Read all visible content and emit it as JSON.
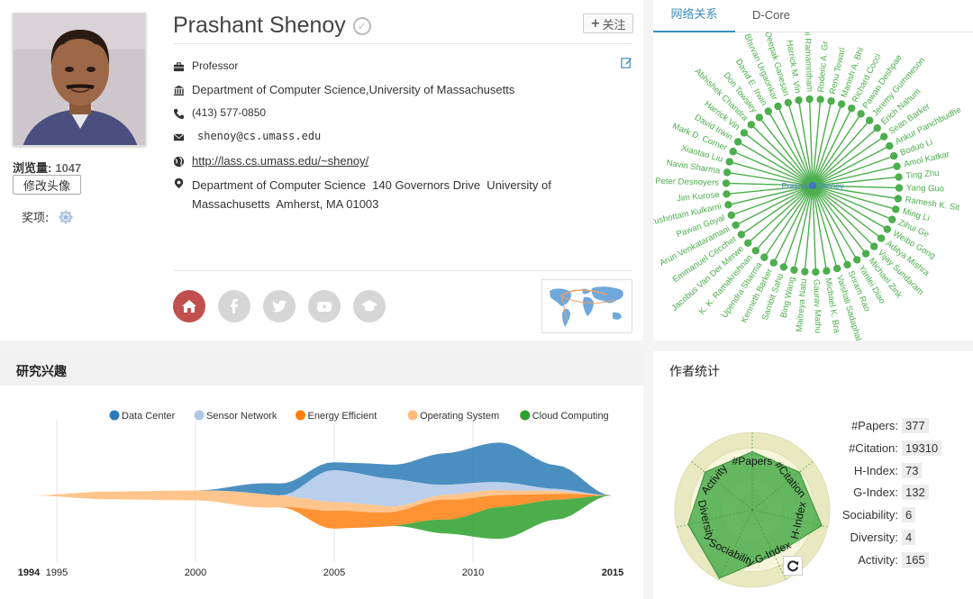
{
  "profile": {
    "name": "Prashant Shenoy",
    "views_label": "浏览量:",
    "views_count": "1047",
    "edit_avatar_label": "修改头像",
    "awards_label": "奖项:",
    "follow_label": "关注",
    "position": "Professor",
    "department": "Department of Computer Science,University of Massachusetts",
    "phone": "(413) 577-0850",
    "email": "shenoy@cs.umass.edu",
    "homepage": "http://lass.cs.umass.edu/~shenoy/",
    "address": "Department of Computer Science  140 Governors Drive  University of Massachusetts  Amherst, MA 01003",
    "colors": {
      "home": "#c0504d",
      "social": "#d6d6d6"
    },
    "social_icons": [
      "home-icon",
      "facebook-icon",
      "twitter-icon",
      "youtube-icon",
      "scholar-icon"
    ]
  },
  "network": {
    "tabs": [
      {
        "label": "网络关系",
        "active": true
      },
      {
        "label": "D-Core",
        "active": false
      }
    ],
    "center": "Prashant Shenoy",
    "color": "#4cae4c",
    "nodes": [
      "Roderic A. Gr",
      "Renu Tewari",
      "Manish A. Bhi",
      "Richard Cocci",
      "Pawan Deshpae",
      "Jeremy Gummeson",
      "Erich Nahum",
      "Sean Barker",
      "Ankur Panchbudhe",
      "Boduo Li",
      "Amol Katkar",
      "Ting Zhu",
      "Yang Guo",
      "Ramesh K. Sit",
      "Ming Li",
      "Zihui Ge",
      "Weibo Gong",
      "Aditya Mishra",
      "Vijay Sundaram",
      "Michael Zink",
      "Yanlei Diao",
      "Sriram Rao",
      "Vaishali Sadaphal",
      "Michael K. Bra",
      "Gaurav Mathu",
      "Maitreya Natu",
      "Bing Wang",
      "Sambit Sahu",
      "Kenneth Barker",
      "Upendra Sharma",
      "K. K. Ramakrishnan",
      "Jacobus Van Der Merwe",
      "Emmanuel Cecchet",
      "Arun Venkataramani",
      "Pawan Goyal",
      "rushottam Kulkarni",
      "Jim Kurose",
      "Peter Desnoyers",
      "Navin Sharma",
      "Xiaotao Liu",
      "Mark D. Corner",
      "David Irwin",
      "Harrick Vin",
      "Abhishek Chandra",
      "Don Towsley",
      "David E. Irwin",
      "Bhuvan Urgaonkar",
      "Deepak Ganesan",
      "Harrick M. Vin",
      "Krithi Ramamritham"
    ]
  },
  "interests": {
    "title": "研究兴趣",
    "chart_data": {
      "type": "area",
      "x_labels": [
        "1995",
        "2000",
        "2005",
        "2010"
      ],
      "x_start_label": "1994",
      "x_end_label": "2015",
      "legend_position": "top",
      "series": [
        {
          "name": "Data Center",
          "color": "#2c7bb6",
          "years": [
            1994,
            2000,
            2003,
            2005,
            2007,
            2009,
            2011,
            2013,
            2015
          ],
          "values": [
            0,
            0,
            0.6,
            0.4,
            0.7,
            1.6,
            2.0,
            1.2,
            0
          ]
        },
        {
          "name": "Sensor Network",
          "color": "#aec7e8",
          "years": [
            1994,
            2003,
            2005,
            2007,
            2009,
            2011,
            2013,
            2015
          ],
          "values": [
            0,
            0,
            1.6,
            1.4,
            0.5,
            0.4,
            0.1,
            0
          ]
        },
        {
          "name": "Energy Efficient",
          "color": "#ff7f0e",
          "years": [
            1994,
            2003,
            2005,
            2007,
            2009,
            2011,
            2013,
            2015
          ],
          "values": [
            0,
            0,
            0.9,
            0.7,
            1.0,
            0.6,
            0.3,
            0
          ]
        },
        {
          "name": "Operating System",
          "color": "#ffbb78",
          "years": [
            1994,
            1997,
            2000,
            2002,
            2004,
            2006,
            2008,
            2010,
            2012,
            2015
          ],
          "values": [
            0,
            0.4,
            0.5,
            0.7,
            0.5,
            0.4,
            0.2,
            0.3,
            0.2,
            0
          ]
        },
        {
          "name": "Cloud Computing",
          "color": "#2ca02c",
          "years": [
            1994,
            2007,
            2009,
            2011,
            2013,
            2015
          ],
          "values": [
            0,
            0,
            0.7,
            1.6,
            1.0,
            0
          ]
        }
      ]
    }
  },
  "stats": {
    "title": "作者统计",
    "rows": [
      {
        "label": "#Papers:",
        "value": "377"
      },
      {
        "label": "#Citation:",
        "value": "19310"
      },
      {
        "label": "H-Index:",
        "value": "73"
      },
      {
        "label": "G-Index:",
        "value": "132"
      },
      {
        "label": "Sociability:",
        "value": "6"
      },
      {
        "label": "Diversity:",
        "value": "4"
      },
      {
        "label": "Activity:",
        "value": "165"
      }
    ],
    "chart_data": {
      "type": "radar",
      "axes": [
        "#Papers",
        "#Citation",
        "H-Index",
        "G-Index",
        "Sociability",
        "Diversity",
        "Activity"
      ],
      "values": [
        0.75,
        0.78,
        0.92,
        0.65,
        0.98,
        0.85,
        0.78
      ],
      "fill_color": "#4cae4c",
      "ring_color": "#e8e9c0"
    }
  }
}
